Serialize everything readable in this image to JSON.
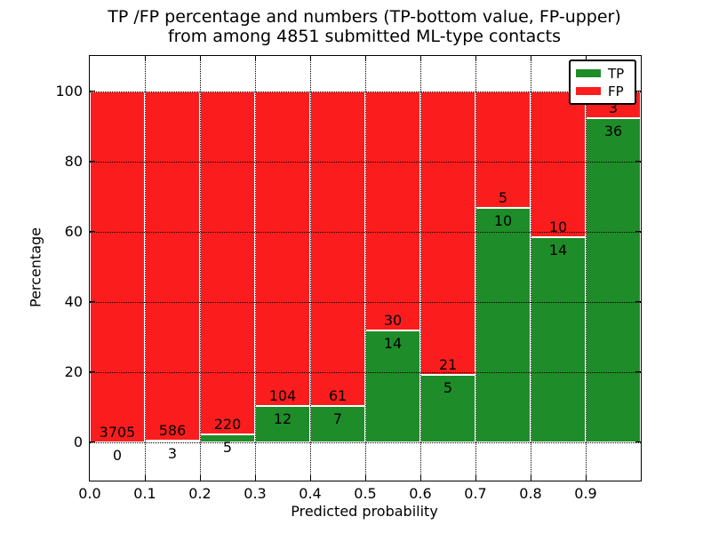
{
  "figure": {
    "title_line1": "TP /FP percentage and numbers (TP-bottom value, FP-upper)",
    "title_line2": "from among 4851 submitted ML-type contacts"
  },
  "axes": {
    "xlabel": "Predicted probability",
    "ylabel": "Percentage",
    "xlim": [
      0.0,
      1.0
    ],
    "ylim": [
      -11,
      110
    ],
    "x_tick_values": [
      0.0,
      0.1,
      0.2,
      0.3,
      0.4,
      0.5,
      0.6,
      0.7,
      0.8,
      0.9
    ],
    "x_tick_labels": [
      "0.0",
      "0.1",
      "0.2",
      "0.3",
      "0.4",
      "0.5",
      "0.6",
      "0.7",
      "0.8",
      "0.9"
    ],
    "y_tick_values": [
      0,
      20,
      40,
      60,
      80,
      100
    ],
    "y_tick_labels": [
      "0",
      "20",
      "40",
      "60",
      "80",
      "100"
    ],
    "grid_style": "dotted"
  },
  "legend": {
    "position": "upper-right",
    "items": [
      {
        "label": "TP",
        "color": "#1e8c28"
      },
      {
        "label": "FP",
        "color": "#fb1d1d"
      }
    ]
  },
  "chart_data": {
    "type": "bar",
    "stacked": true,
    "normalized_to_percent": 100,
    "title": "TP /FP percentage and numbers (TP-bottom value, FP-upper)\nfrom among 4851 submitted ML-type contacts",
    "xlabel": "Predicted probability",
    "ylabel": "Percentage",
    "total_contacts": 4851,
    "bin_width": 0.1,
    "bin_starts": [
      0.0,
      0.1,
      0.2,
      0.3,
      0.4,
      0.5,
      0.6,
      0.7,
      0.8,
      0.9
    ],
    "series": [
      {
        "name": "TP",
        "color": "#1e8c28",
        "counts": [
          0,
          3,
          5,
          12,
          7,
          14,
          5,
          10,
          14,
          36
        ]
      },
      {
        "name": "FP",
        "color": "#fb1d1d",
        "counts": [
          3705,
          586,
          220,
          104,
          61,
          30,
          21,
          5,
          10,
          3
        ]
      }
    ],
    "tp_percent_of_bin": [
      0.0,
      0.51,
      2.22,
      10.34,
      10.29,
      31.82,
      19.23,
      66.67,
      58.33,
      92.31
    ],
    "ylim": [
      -11,
      110
    ],
    "xlim": [
      0.0,
      1.0
    ]
  },
  "colors": {
    "background": "#ffffff",
    "spine": "#000000",
    "grid": "#000000",
    "bar_edge": "#ffffff",
    "text": "#000000"
  }
}
